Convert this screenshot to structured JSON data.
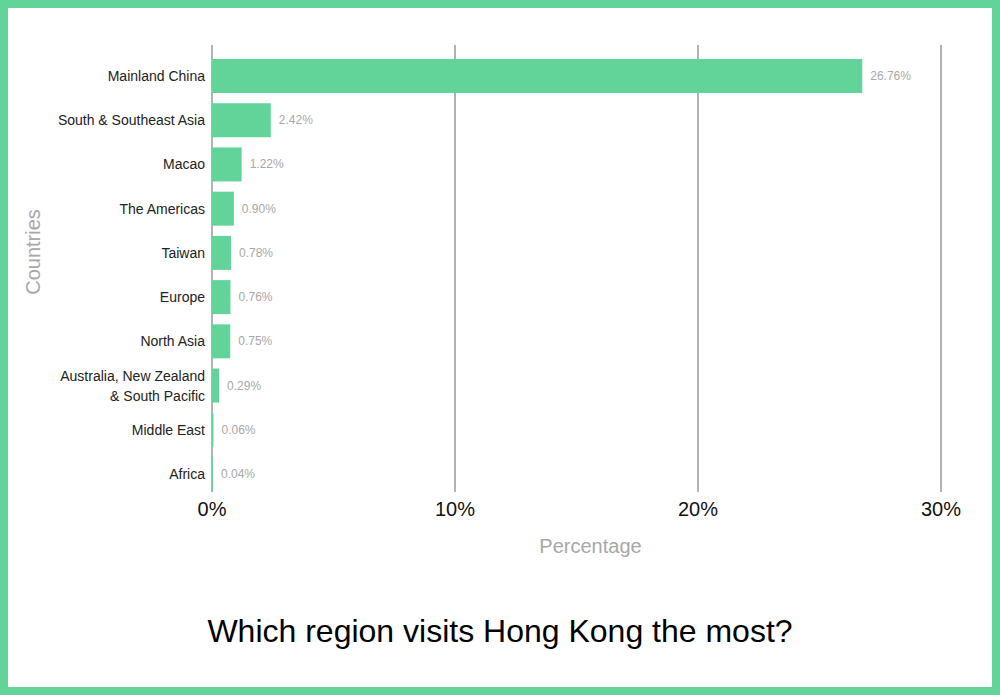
{
  "chart_data": {
    "type": "bar",
    "orientation": "horizontal",
    "title": "Which region visits Hong Kong the most?",
    "x_label": "Percentage",
    "y_label": "Countries",
    "categories": [
      "Mainland China",
      "South & Southeast Asia",
      "Macao",
      "The Americas",
      "Taiwan",
      "Europe",
      "North Asia",
      "Australia, New Zealand\n& South Pacific",
      "Middle East",
      "Africa"
    ],
    "values": [
      26.76,
      2.42,
      1.22,
      0.9,
      0.78,
      0.76,
      0.75,
      0.29,
      0.06,
      0.04
    ],
    "value_labels": [
      "26.76%",
      "2.42%",
      "1.22%",
      "0.90%",
      "0.78%",
      "0.76%",
      "0.75%",
      "0.29%",
      "0.06%",
      "0.04%"
    ],
    "color": "#62d49a",
    "xlim": [
      0,
      30
    ],
    "xticks": [
      {
        "value": 0,
        "label": "0%"
      },
      {
        "value": 10,
        "label": "10%"
      },
      {
        "value": 20,
        "label": "20%"
      },
      {
        "value": 30,
        "label": "30%"
      }
    ],
    "grid": true,
    "data_labels": true
  }
}
